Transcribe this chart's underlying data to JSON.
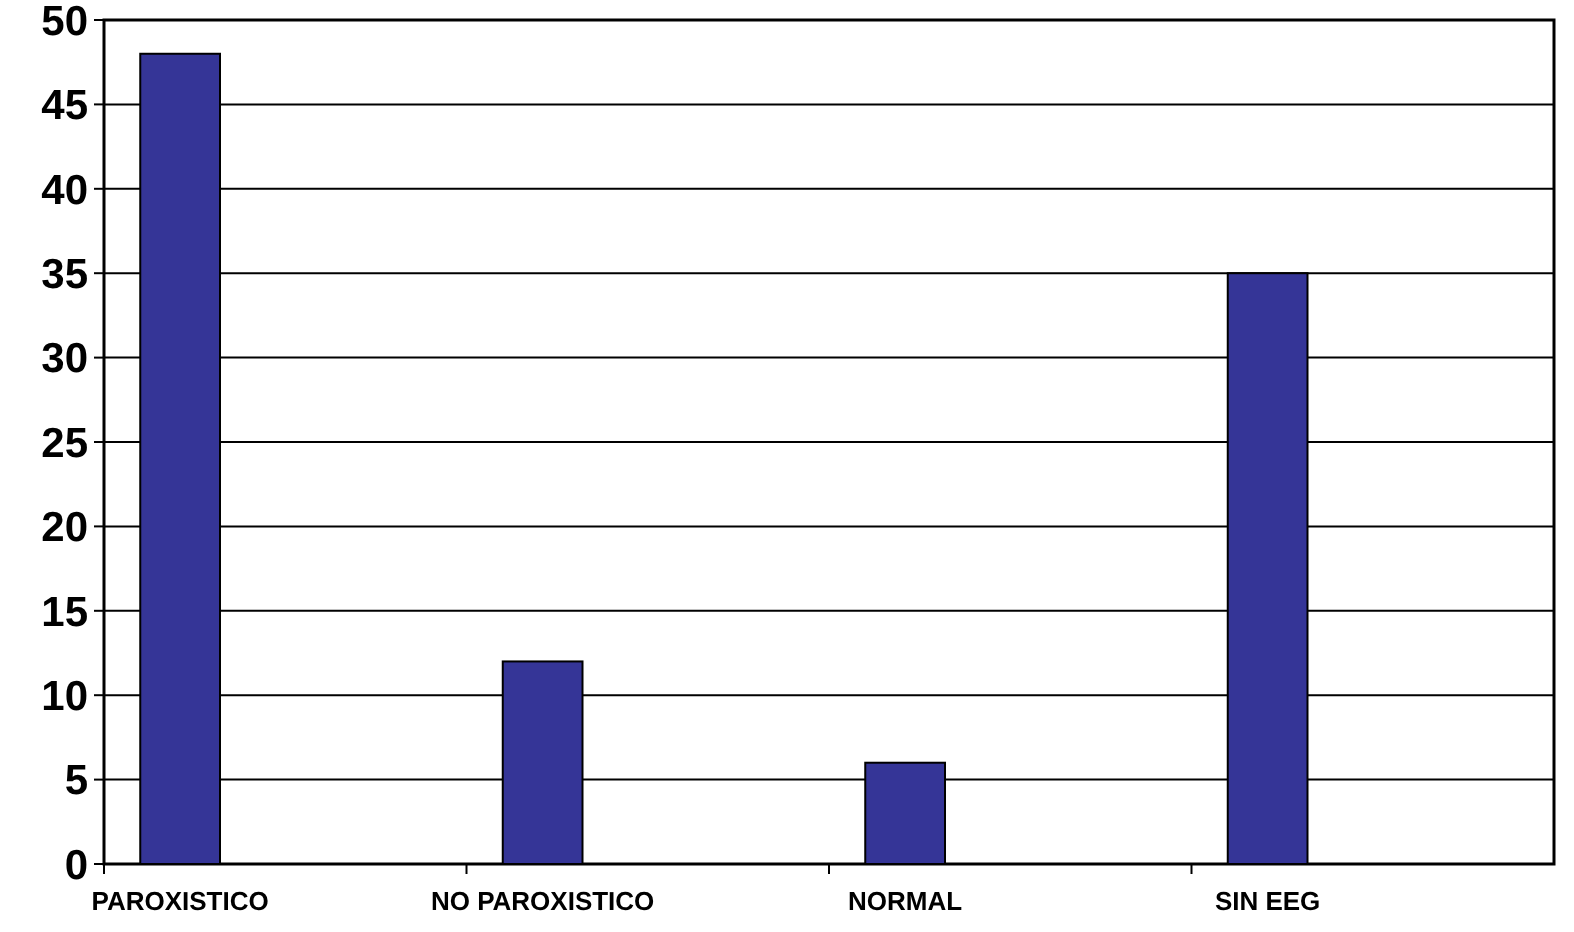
{
  "chart_data": {
    "type": "bar",
    "categories": [
      "PAROXISTICO",
      "NO PAROXISTICO",
      "NORMAL",
      "SIN EEG"
    ],
    "values": [
      48,
      12,
      6,
      35
    ],
    "color": "#353597",
    "ylim": [
      0,
      50
    ],
    "yticks": [
      0,
      5,
      10,
      15,
      20,
      25,
      30,
      35,
      40,
      45,
      50
    ],
    "grid": "y"
  }
}
